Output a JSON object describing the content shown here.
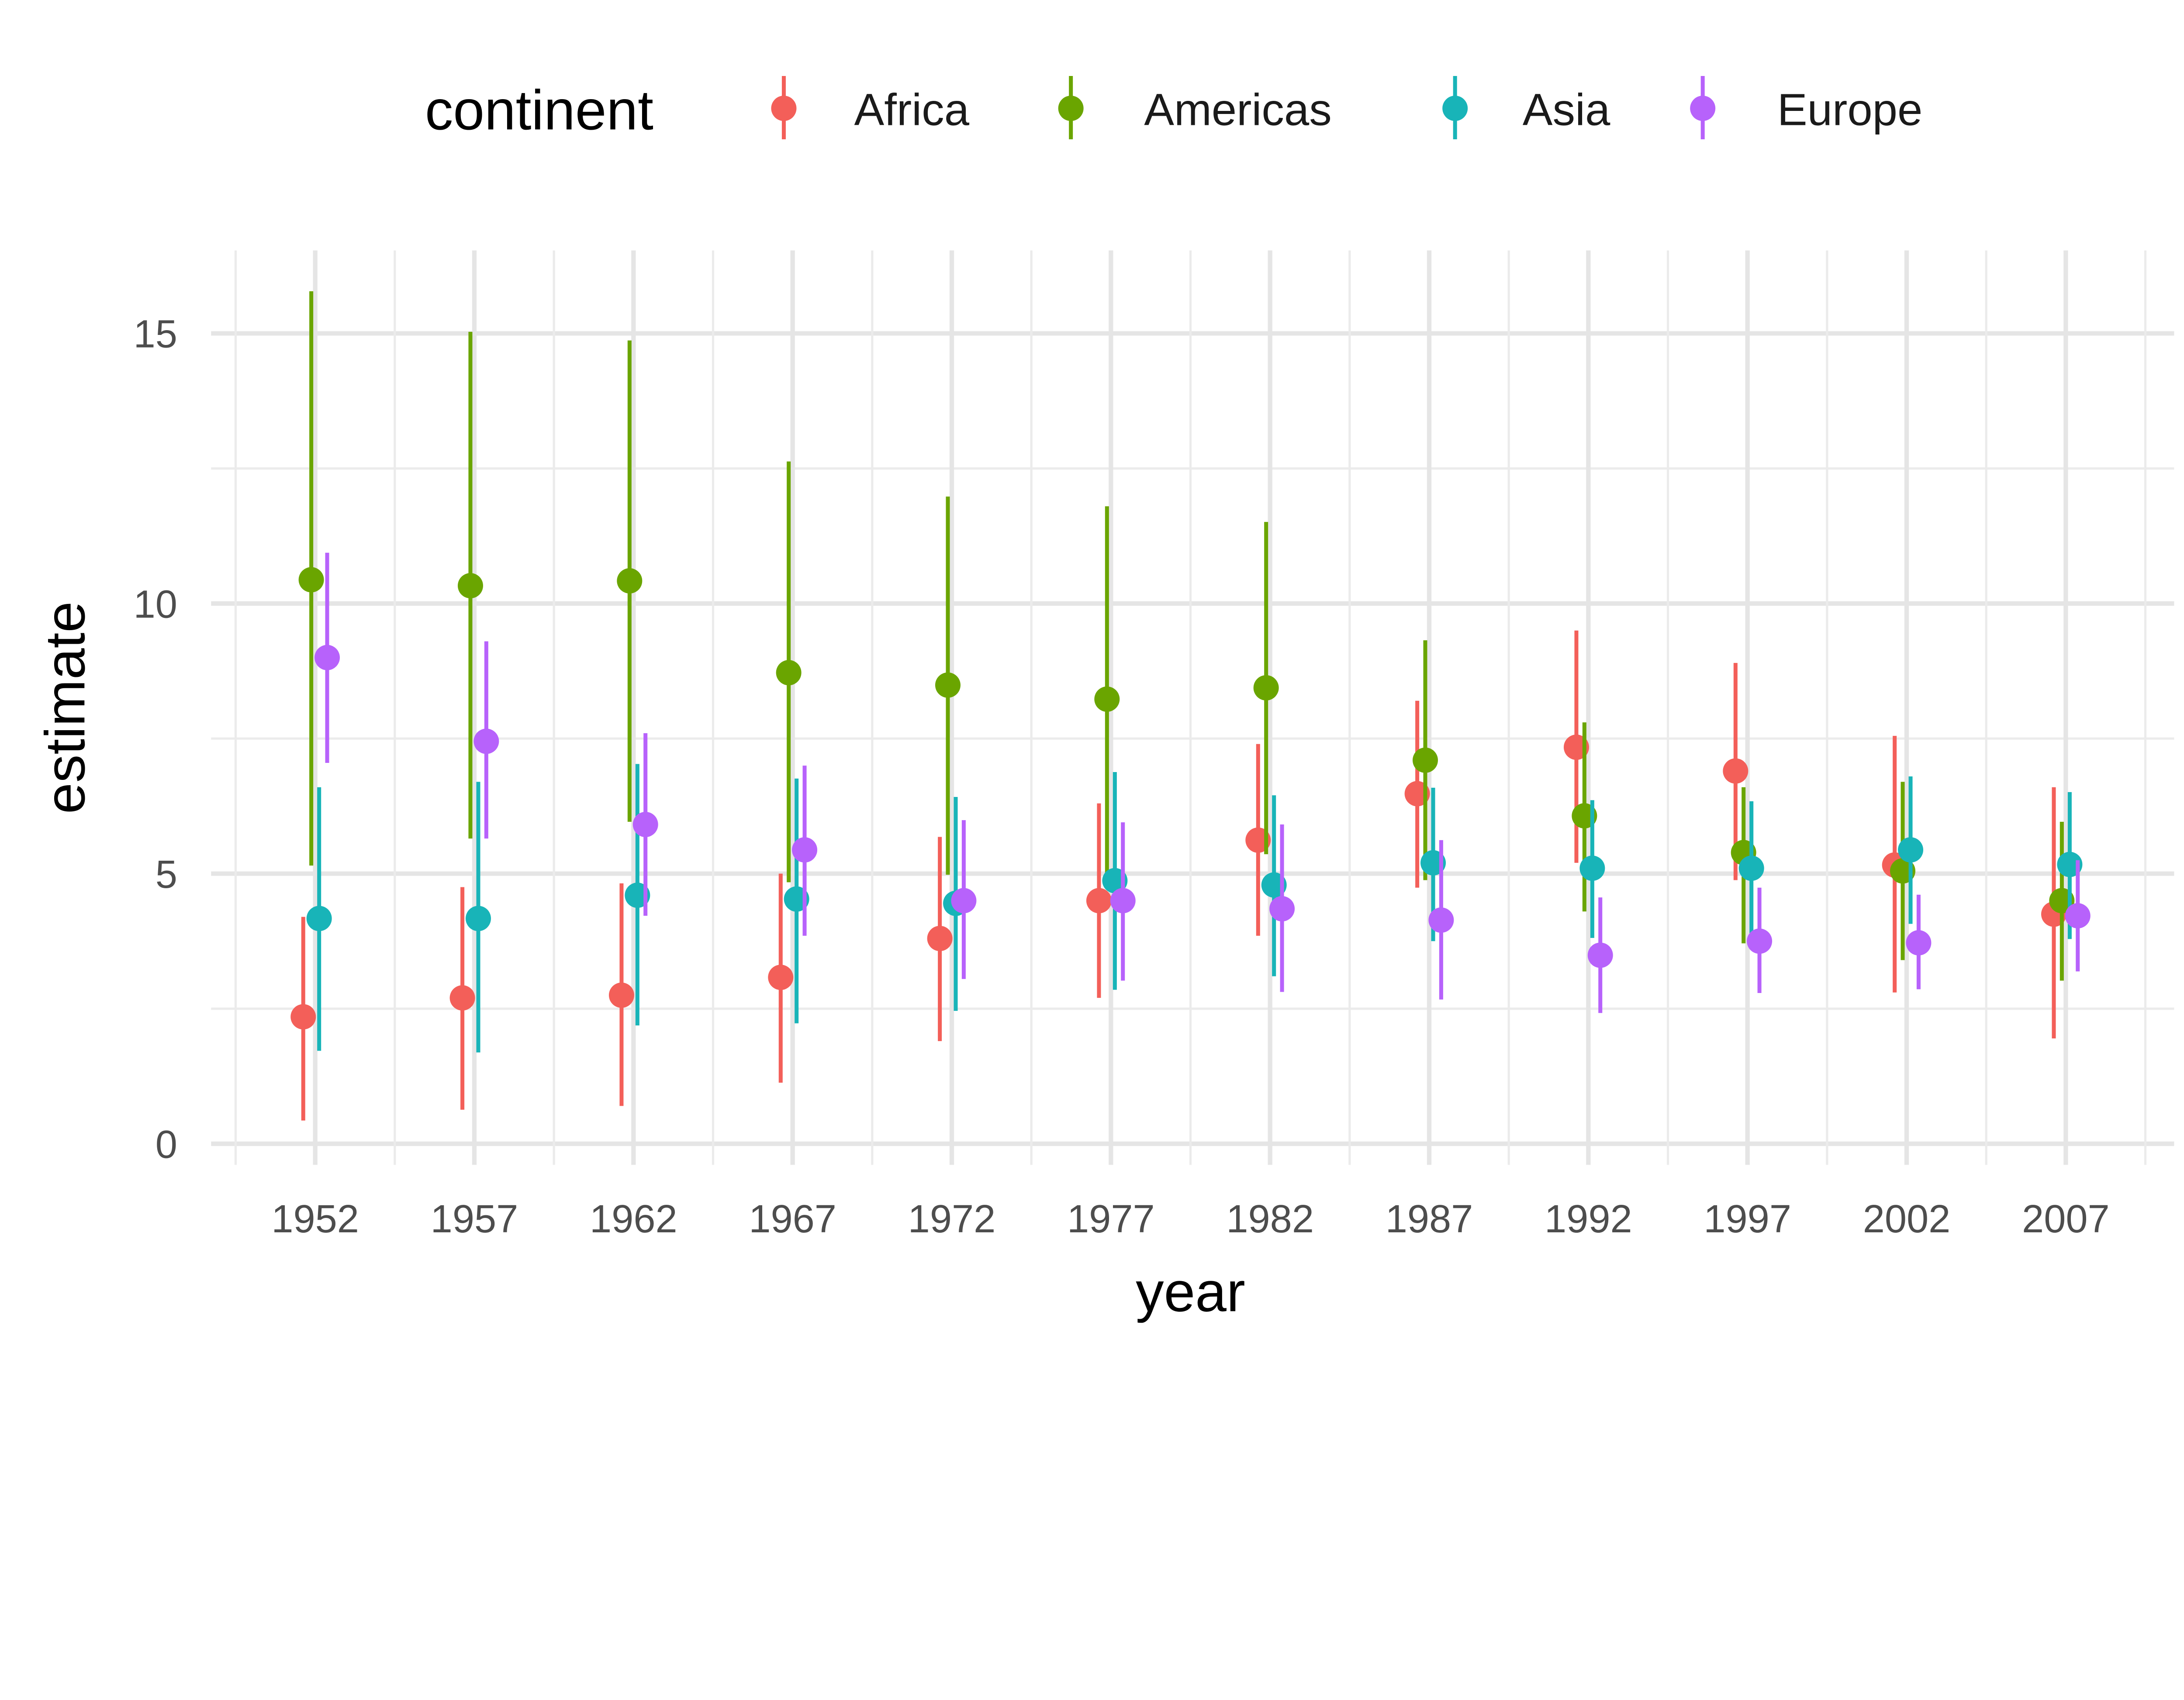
{
  "chart_data": {
    "type": "scatter",
    "subtype": "point-range (dodged)",
    "xlabel": "year",
    "ylabel": "estimate",
    "ylim": [
      0,
      16.5
    ],
    "xlim": [
      1949.5,
      2009.5
    ],
    "yticks": [
      0,
      5,
      10,
      15
    ],
    "xticks": [
      1952,
      1957,
      1962,
      1967,
      1972,
      1977,
      1982,
      1987,
      1992,
      1997,
      2002,
      2007
    ],
    "grid": true,
    "legend": {
      "title": "continent",
      "placement": "top"
    },
    "x": [
      1952,
      1957,
      1962,
      1967,
      1972,
      1977,
      1982,
      1987,
      1992,
      1997,
      2002,
      2007
    ],
    "series": [
      {
        "name": "Africa",
        "color": "#F35F59",
        "estimate": [
          2.35,
          2.7,
          2.75,
          3.08,
          3.8,
          4.5,
          5.62,
          6.48,
          7.34,
          6.9,
          5.16,
          4.25
        ],
        "low": [
          0.43,
          0.63,
          0.7,
          1.13,
          1.9,
          2.7,
          3.85,
          4.74,
          5.2,
          4.88,
          2.8,
          1.95
        ],
        "high": [
          4.2,
          4.75,
          4.82,
          5.0,
          5.68,
          6.3,
          7.4,
          8.2,
          9.5,
          8.9,
          7.55,
          6.6
        ]
      },
      {
        "name": "Americas",
        "color": "#6AA500",
        "estimate": [
          10.44,
          10.33,
          10.42,
          8.72,
          8.49,
          8.23,
          8.44,
          7.1,
          6.07,
          5.39,
          5.05,
          4.5
        ],
        "low": [
          5.15,
          5.65,
          5.96,
          4.84,
          4.98,
          4.95,
          5.36,
          4.88,
          4.3,
          3.71,
          3.4,
          3.02
        ],
        "high": [
          15.78,
          15.03,
          14.87,
          12.63,
          11.98,
          11.8,
          11.51,
          9.32,
          7.8,
          6.6,
          6.7,
          5.96
        ]
      },
      {
        "name": "Asia",
        "color": "#18B4B8",
        "estimate": [
          4.17,
          4.17,
          4.6,
          4.53,
          4.45,
          4.87,
          4.79,
          5.2,
          5.1,
          5.1,
          5.44,
          5.17
        ],
        "low": [
          1.72,
          1.69,
          2.19,
          2.23,
          2.46,
          2.85,
          3.1,
          3.75,
          3.81,
          3.9,
          4.07,
          3.79
        ],
        "high": [
          6.6,
          6.7,
          7.03,
          6.76,
          6.42,
          6.88,
          6.45,
          6.59,
          6.36,
          6.34,
          6.8,
          6.51
        ]
      },
      {
        "name": "Europe",
        "color": "#B762FB",
        "estimate": [
          9.0,
          7.45,
          5.91,
          5.44,
          4.5,
          4.5,
          4.35,
          4.14,
          3.49,
          3.75,
          3.72,
          4.22
        ],
        "low": [
          7.05,
          5.65,
          4.22,
          3.85,
          3.05,
          3.02,
          2.81,
          2.67,
          2.42,
          2.79,
          2.86,
          3.19
        ],
        "high": [
          10.94,
          9.3,
          7.6,
          7.0,
          5.99,
          5.95,
          5.91,
          5.62,
          4.56,
          4.74,
          4.61,
          5.25
        ]
      }
    ]
  }
}
